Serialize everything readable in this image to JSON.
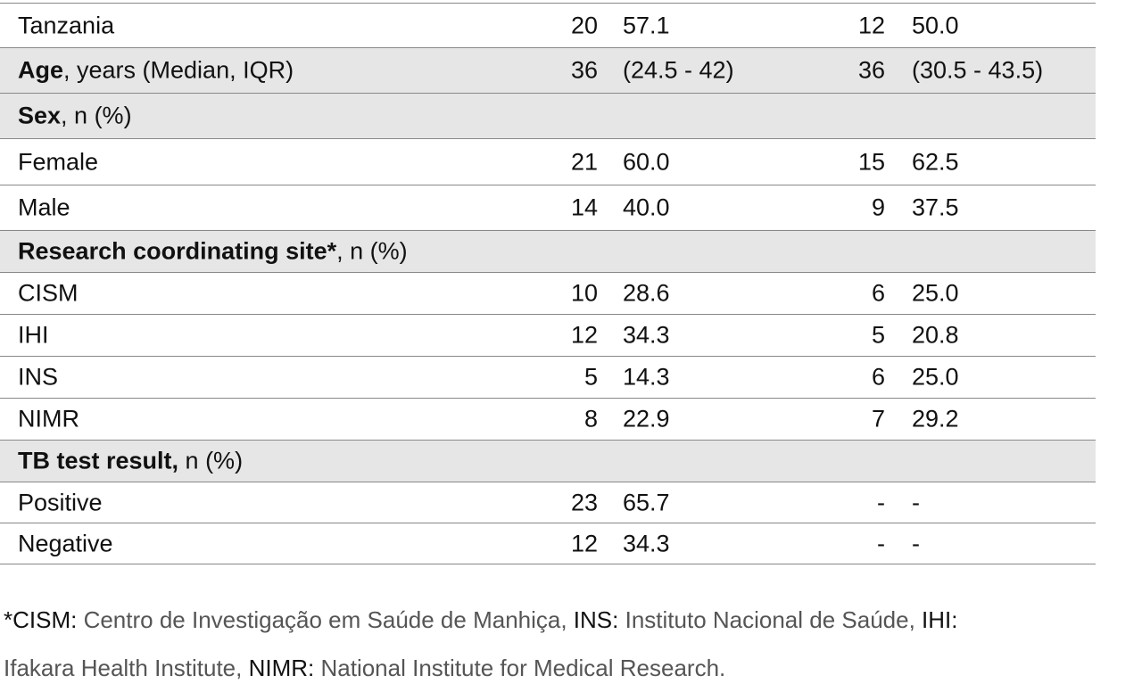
{
  "table": {
    "rows": [
      {
        "label": "Tanzania",
        "cells": [
          "20",
          "57.1",
          "12",
          "50.0"
        ]
      },
      {
        "label": {
          "bold": "Age",
          "rest": ", years (Median, IQR)"
        },
        "shaded": true,
        "cells": [
          "36",
          "(24.5 - 42)",
          "36",
          "(30.5 - 43.5)"
        ]
      },
      {
        "label": {
          "bold": "Sex",
          "rest": ", n (%)"
        },
        "shaded": true
      },
      {
        "label": "Female",
        "cells": [
          "21",
          "60.0",
          "15",
          "62.5"
        ]
      },
      {
        "label": "Male",
        "cells": [
          "14",
          "40.0",
          "9",
          "37.5"
        ]
      },
      {
        "label": {
          "bold": "Research coordinating site*",
          "rest": ", n (%)"
        },
        "shaded": true
      },
      {
        "label": "CISM",
        "cells": [
          "10",
          "28.6",
          "6",
          "25.0"
        ]
      },
      {
        "label": "IHI",
        "cells": [
          "12",
          "34.3",
          "5",
          "20.8"
        ]
      },
      {
        "label": "INS",
        "cells": [
          "5",
          "14.3",
          "6",
          "25.0"
        ]
      },
      {
        "label": "NIMR",
        "cells": [
          "8",
          "22.9",
          "7",
          "29.2"
        ]
      },
      {
        "label": {
          "bold": "TB test result,",
          "rest": " n (%)"
        },
        "shaded": true
      },
      {
        "label": "Positive",
        "cells": [
          "23",
          "65.7",
          "-",
          "-"
        ]
      },
      {
        "label": "Negative",
        "cells": [
          "12",
          "34.3",
          "-",
          "-"
        ]
      }
    ]
  },
  "footnote": [
    [
      {
        "text": "*CISM:",
        "style": "key"
      },
      {
        "text": " Centro de Investigação em Saúde de Manhiça, ",
        "style": "text"
      },
      {
        "text": "INS:",
        "style": "key"
      },
      {
        "text": " Instituto Nacional de Saúde, ",
        "style": "text"
      },
      {
        "text": "IHI:",
        "style": "key"
      }
    ],
    [
      {
        "text": "Ifakara Health Institute, ",
        "style": "text"
      },
      {
        "text": "NIMR:",
        "style": "key"
      },
      {
        "text": " National Institute for Medical Research.",
        "style": "text"
      }
    ]
  ]
}
